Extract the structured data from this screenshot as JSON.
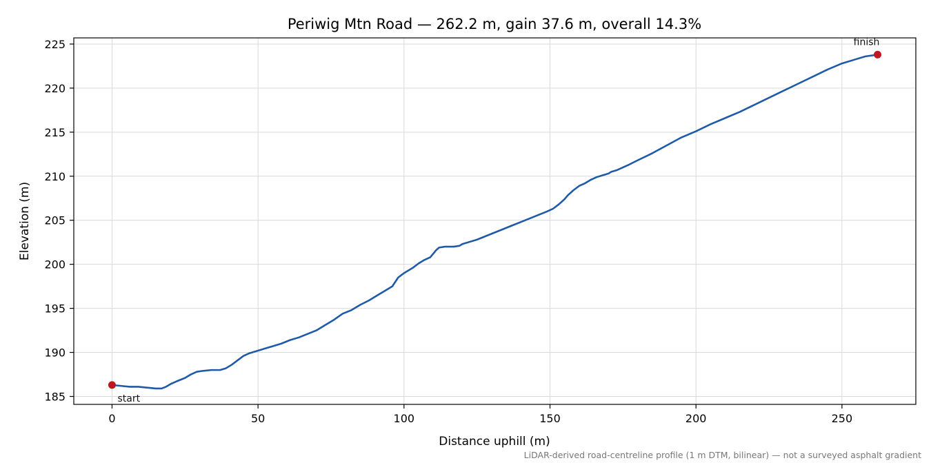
{
  "chart_data": {
    "type": "line",
    "title": "Periwig Mtn Road — 262.2 m, gain 37.6 m, overall 14.3%",
    "xlabel": "Distance uphill (m)",
    "ylabel": "Elevation (m)",
    "footnote": "LiDAR-derived road-centreline profile (1 m DTM, bilinear) — not a surveyed asphalt gradient",
    "xlim": [
      -13.1,
      275.3
    ],
    "ylim": [
      184.1,
      225.7
    ],
    "xticks": [
      0,
      50,
      100,
      150,
      200,
      250
    ],
    "yticks": [
      185,
      190,
      195,
      200,
      205,
      210,
      215,
      220,
      225
    ],
    "grid": true,
    "line_color": "#1f5aa8",
    "marker_color": "#c0161f",
    "series": [
      {
        "x": [
          0,
          3,
          6,
          9,
          12,
          15,
          17,
          18.5,
          20,
          22,
          25,
          27,
          29,
          31,
          34,
          37,
          39,
          41,
          43,
          45,
          47,
          49,
          52,
          55,
          58,
          61,
          64,
          67,
          70,
          73,
          76,
          79,
          82,
          85,
          88,
          91,
          94,
          96,
          97,
          98,
          100,
          103,
          105,
          107,
          109,
          110,
          111,
          112,
          114,
          117,
          119,
          120,
          122,
          125,
          128,
          131,
          134,
          137,
          140,
          143,
          146,
          149,
          151,
          153,
          155,
          156,
          157,
          158,
          160,
          162,
          164,
          166,
          168,
          170,
          171,
          173,
          175,
          177,
          180,
          185,
          190,
          195,
          200,
          205,
          210,
          215,
          220,
          225,
          230,
          235,
          240,
          245,
          250,
          255,
          258,
          262.2
        ],
        "y": [
          186.3,
          186.2,
          186.1,
          186.1,
          186.0,
          185.9,
          185.9,
          186.1,
          186.4,
          186.7,
          187.1,
          187.5,
          187.8,
          187.9,
          188.0,
          188.0,
          188.2,
          188.6,
          189.1,
          189.6,
          189.9,
          190.1,
          190.4,
          190.7,
          191.0,
          191.4,
          191.7,
          192.1,
          192.5,
          193.1,
          193.7,
          194.4,
          194.8,
          195.4,
          195.9,
          196.5,
          197.1,
          197.5,
          198.0,
          198.5,
          199.0,
          199.6,
          200.1,
          200.5,
          200.8,
          201.2,
          201.6,
          201.9,
          202.0,
          202.0,
          202.1,
          202.3,
          202.5,
          202.8,
          203.2,
          203.6,
          204.0,
          204.4,
          204.8,
          205.2,
          205.6,
          206.0,
          206.3,
          206.8,
          207.4,
          207.8,
          208.1,
          208.4,
          208.9,
          209.2,
          209.6,
          209.9,
          210.1,
          210.3,
          210.5,
          210.7,
          211.0,
          211.3,
          211.8,
          212.6,
          213.5,
          214.4,
          215.1,
          215.9,
          216.6,
          217.3,
          218.1,
          218.9,
          219.7,
          220.5,
          221.3,
          222.1,
          222.8,
          223.3,
          223.6,
          223.8
        ]
      }
    ],
    "annotations": [
      {
        "text": "start",
        "x": 0,
        "y": 186.3
      },
      {
        "text": "finish",
        "x": 262.2,
        "y": 223.8
      }
    ]
  }
}
